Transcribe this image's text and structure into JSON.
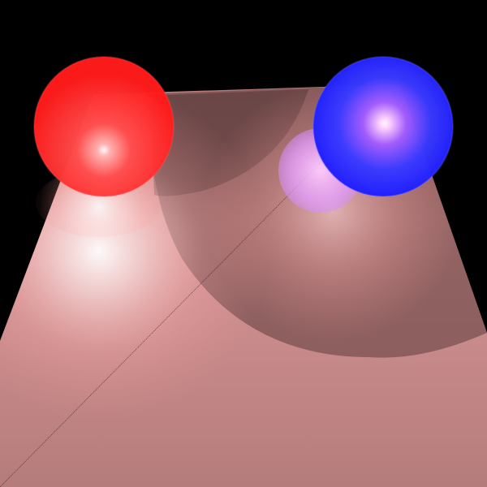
{
  "scene": {
    "background_color": "#000000",
    "floor": {
      "base_color": "#c98a8a",
      "highlight_color": "#ffe6e6",
      "shadow_color": "#6a4848"
    },
    "spheres": [
      {
        "name": "red-sphere",
        "color": "#ff2020",
        "highlight": "#ffffff"
      },
      {
        "name": "blue-sphere",
        "color": "#2a2aff",
        "highlight": "#ffd0ff"
      }
    ],
    "reflections": [
      {
        "name": "red-sphere-reflection",
        "color": "#ff6a6a"
      },
      {
        "name": "blue-sphere-reflection",
        "color": "#e38cff"
      }
    ]
  }
}
